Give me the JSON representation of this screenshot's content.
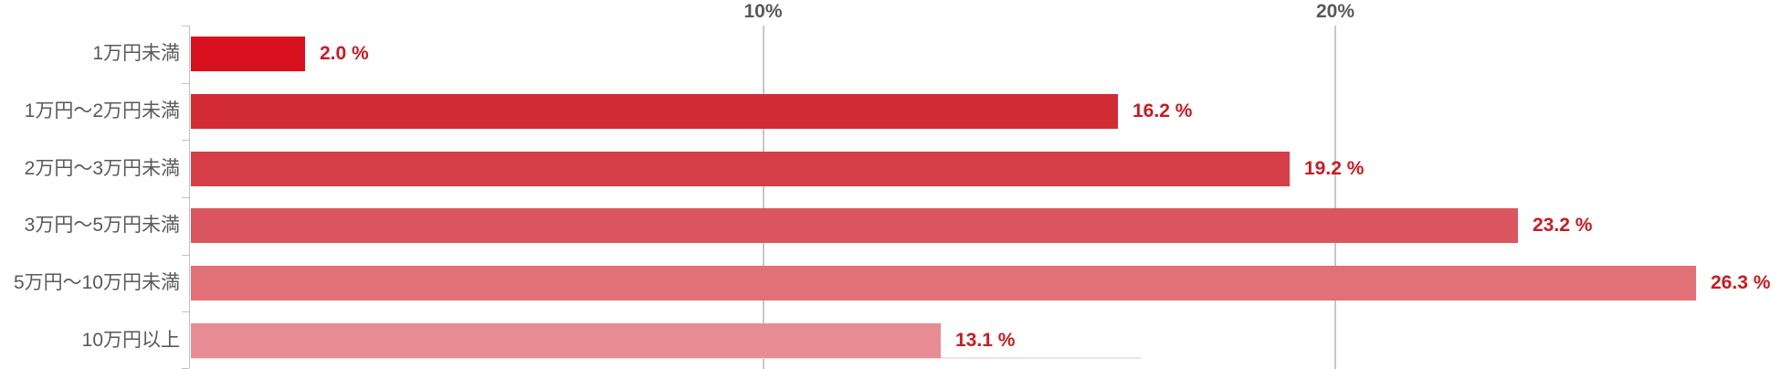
{
  "chart_data": {
    "type": "bar",
    "orientation": "horizontal",
    "title": "",
    "categories": [
      "1万円未満",
      "1万円～2万円未満",
      "2万円～3万円未満",
      "3万円～5万円未満",
      "5万円～10万円未満",
      "10万円以上"
    ],
    "values": [
      2.0,
      16.2,
      19.2,
      23.2,
      26.3,
      13.1
    ],
    "value_labels": [
      "2.0 %",
      "16.2 %",
      "19.2 %",
      "23.2 %",
      "26.3 %",
      "13.1 %"
    ],
    "bar_colors": [
      "#d9111e",
      "#d32b35",
      "#d63e47",
      "#db565e",
      "#e17077",
      "#e88c93"
    ],
    "value_label_color": "#cb1a22",
    "category_label_color": "#595959",
    "axis_tick_label_color": "#595959",
    "axis_line_color": "#bdc3cb",
    "gridline_color": "#c7c7c7",
    "x_axis": {
      "ticks": [
        {
          "value": 10,
          "label": "10%"
        },
        {
          "value": 20,
          "label": "20%"
        }
      ],
      "xlim": [
        0,
        27.8
      ]
    },
    "grid": true,
    "legend": false
  }
}
